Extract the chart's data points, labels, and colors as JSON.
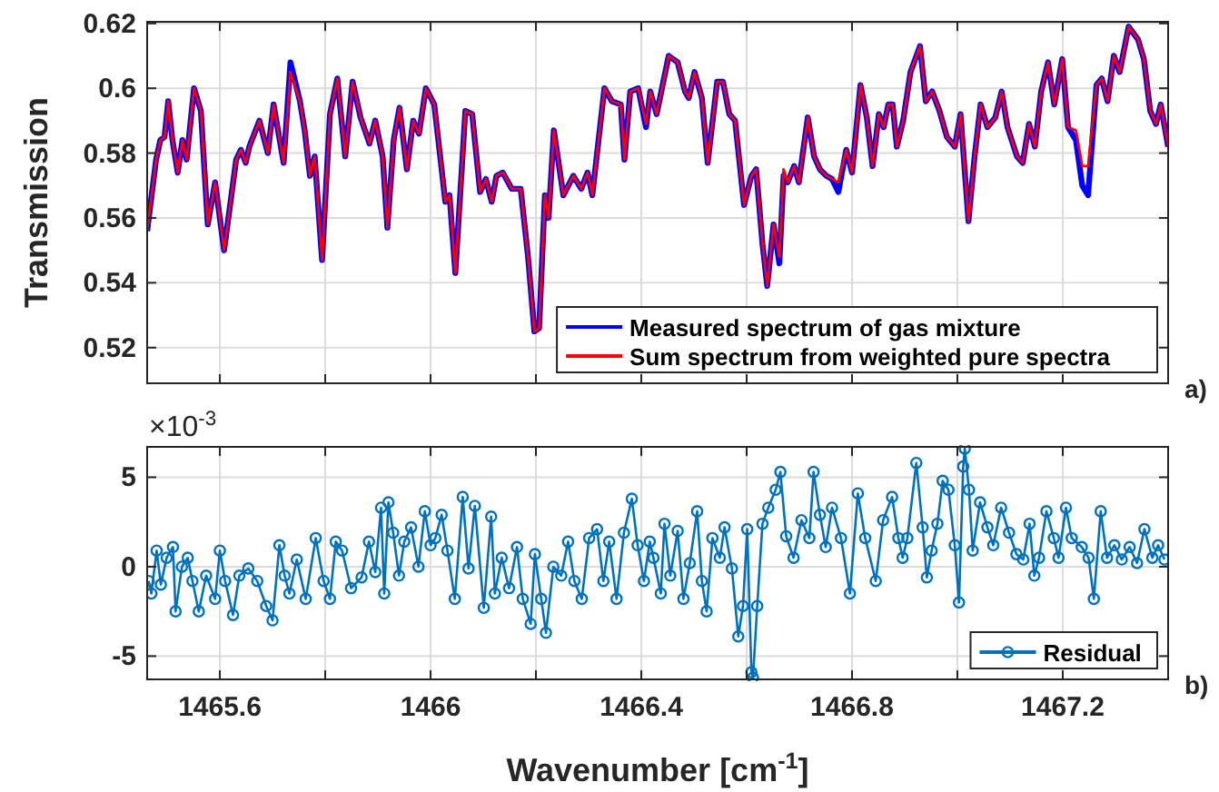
{
  "chart_data": [
    {
      "type": "line",
      "ylabel": "Transmission",
      "tick_labels": "y",
      "grid": true,
      "legend": "bottom right",
      "annotations": [
        "a)"
      ],
      "xlim": [
        1465.462,
        1467.4
      ],
      "xticks": [
        1465.6,
        {
          "value": 1465.8,
          "label": null
        },
        1466,
        {
          "value": 1466.2,
          "label": null
        },
        1466.4,
        {
          "value": 1466.6,
          "label": null
        },
        1466.8,
        {
          "value": 1467,
          "label": null
        },
        1467.2
      ],
      "ylim": [
        0.509,
        0.6205
      ],
      "yticks": [
        0.52,
        0.54,
        0.56,
        0.58,
        0.6,
        0.62
      ],
      "x": [
        1465.462,
        1465.479,
        1465.487,
        1465.495,
        1465.502,
        1465.51,
        1465.52,
        1465.529,
        1465.537,
        1465.551,
        1465.564,
        1465.577,
        1465.591,
        1465.608,
        1465.631,
        1465.64,
        1465.649,
        1465.656,
        1465.675,
        1465.691,
        1465.702,
        1465.721,
        1465.734,
        1465.752,
        1465.761,
        1465.771,
        1465.78,
        1465.794,
        1465.809,
        1465.823,
        1465.838,
        1465.852,
        1465.867,
        1465.884,
        1465.895,
        1465.909,
        1465.918,
        1465.93,
        1465.941,
        1465.955,
        1465.967,
        1465.978,
        1465.991,
        1466.007,
        1466.028,
        1466.036,
        1466.047,
        1466.066,
        1466.079,
        1466.094,
        1466.105,
        1466.116,
        1466.125,
        1466.137,
        1466.154,
        1466.171,
        1466.185,
        1466.197,
        1466.206,
        1466.217,
        1466.224,
        1466.234,
        1466.252,
        1466.271,
        1466.286,
        1466.298,
        1466.307,
        1466.33,
        1466.344,
        1466.361,
        1466.368,
        1466.379,
        1466.394,
        1466.409,
        1466.417,
        1466.429,
        1466.452,
        1466.469,
        1466.483,
        1466.49,
        1466.501,
        1466.515,
        1466.526,
        1466.544,
        1466.555,
        1466.567,
        1466.578,
        1466.595,
        1466.609,
        1466.618,
        1466.63,
        1466.639,
        1466.651,
        1466.662,
        1466.67,
        1466.678,
        1466.69,
        1466.699,
        1466.716,
        1466.728,
        1466.739,
        1466.751,
        1466.762,
        1466.774,
        1466.789,
        1466.8,
        1466.816,
        1466.828,
        1466.839,
        1466.851,
        1466.86,
        1466.869,
        1466.877,
        1466.885,
        1466.897,
        1466.911,
        1466.929,
        1466.94,
        1466.952,
        1466.966,
        1466.98,
        1466.995,
        1467.006,
        1467.021,
        1467.032,
        1467.044,
        1467.057,
        1467.072,
        1467.084,
        1467.095,
        1467.113,
        1467.124,
        1467.136,
        1467.147,
        1467.159,
        1467.172,
        1467.184,
        1467.199,
        1467.21,
        1467.225,
        1467.237,
        1467.248,
        1467.264,
        1467.274,
        1467.285,
        1467.297,
        1467.308,
        1467.325,
        1467.343,
        1467.354,
        1467.366,
        1467.377,
        1467.386,
        1467.4
      ],
      "series": [
        {
          "name": "Measured spectrum of gas mixture",
          "color": "#0000ff",
          "values": [
            0.556,
            0.578,
            0.584,
            0.585,
            0.596,
            0.584,
            0.574,
            0.584,
            0.578,
            0.6,
            0.593,
            0.558,
            0.571,
            0.55,
            0.578,
            0.581,
            0.577,
            0.582,
            0.59,
            0.58,
            0.595,
            0.577,
            0.608,
            0.596,
            0.587,
            0.573,
            0.579,
            0.547,
            0.592,
            0.603,
            0.579,
            0.602,
            0.591,
            0.583,
            0.59,
            0.579,
            0.557,
            0.584,
            0.594,
            0.575,
            0.59,
            0.586,
            0.6,
            0.595,
            0.565,
            0.567,
            0.543,
            0.593,
            0.592,
            0.568,
            0.572,
            0.565,
            0.573,
            0.574,
            0.569,
            0.569,
            0.548,
            0.525,
            0.526,
            0.567,
            0.56,
            0.587,
            0.567,
            0.573,
            0.569,
            0.574,
            0.567,
            0.6,
            0.596,
            0.595,
            0.578,
            0.599,
            0.6,
            0.588,
            0.599,
            0.592,
            0.61,
            0.608,
            0.599,
            0.597,
            0.605,
            0.597,
            0.577,
            0.602,
            0.602,
            0.592,
            0.59,
            0.564,
            0.573,
            0.575,
            0.552,
            0.539,
            0.558,
            0.546,
            0.573,
            0.571,
            0.576,
            0.571,
            0.591,
            0.579,
            0.575,
            0.573,
            0.572,
            0.568,
            0.581,
            0.574,
            0.601,
            0.591,
            0.576,
            0.592,
            0.588,
            0.595,
            0.595,
            0.582,
            0.59,
            0.605,
            0.613,
            0.596,
            0.599,
            0.593,
            0.585,
            0.582,
            0.592,
            0.559,
            0.578,
            0.595,
            0.588,
            0.591,
            0.599,
            0.588,
            0.579,
            0.577,
            0.589,
            0.582,
            0.599,
            0.608,
            0.595,
            0.609,
            0.588,
            0.584,
            0.57,
            0.567,
            0.601,
            0.603,
            0.596,
            0.61,
            0.605,
            0.619,
            0.615,
            0.609,
            0.593,
            0.589,
            0.595,
            0.582
          ]
        },
        {
          "name": "Sum spectrum from weighted pure spectra",
          "color": "#ff0000",
          "values": [
            0.556,
            0.578,
            0.584,
            0.585,
            0.596,
            0.584,
            0.574,
            0.584,
            0.578,
            0.6,
            0.593,
            0.558,
            0.571,
            0.55,
            0.578,
            0.581,
            0.577,
            0.582,
            0.59,
            0.58,
            0.595,
            0.577,
            0.605,
            0.596,
            0.587,
            0.573,
            0.579,
            0.547,
            0.592,
            0.603,
            0.579,
            0.602,
            0.591,
            0.583,
            0.59,
            0.579,
            0.557,
            0.584,
            0.594,
            0.575,
            0.59,
            0.586,
            0.6,
            0.595,
            0.565,
            0.567,
            0.543,
            0.593,
            0.592,
            0.568,
            0.572,
            0.565,
            0.573,
            0.574,
            0.569,
            0.569,
            0.548,
            0.525,
            0.526,
            0.567,
            0.56,
            0.587,
            0.567,
            0.573,
            0.569,
            0.574,
            0.567,
            0.6,
            0.596,
            0.595,
            0.578,
            0.599,
            0.6,
            0.589,
            0.599,
            0.592,
            0.61,
            0.608,
            0.599,
            0.597,
            0.605,
            0.597,
            0.577,
            0.602,
            0.602,
            0.592,
            0.59,
            0.564,
            0.573,
            0.575,
            0.552,
            0.539,
            0.558,
            0.548,
            0.575,
            0.571,
            0.576,
            0.571,
            0.591,
            0.579,
            0.575,
            0.573,
            0.572,
            0.571,
            0.581,
            0.574,
            0.601,
            0.591,
            0.576,
            0.592,
            0.588,
            0.595,
            0.595,
            0.582,
            0.59,
            0.605,
            0.613,
            0.596,
            0.599,
            0.593,
            0.585,
            0.582,
            0.592,
            0.559,
            0.578,
            0.595,
            0.588,
            0.591,
            0.599,
            0.588,
            0.579,
            0.577,
            0.589,
            0.582,
            0.599,
            0.608,
            0.595,
            0.609,
            0.588,
            0.587,
            0.576,
            0.576,
            0.601,
            0.603,
            0.596,
            0.61,
            0.605,
            0.619,
            0.615,
            0.609,
            0.593,
            0.589,
            0.595,
            0.582
          ]
        }
      ]
    },
    {
      "type": "line",
      "xlabel": "Wavenumber [cm$^{-1}$]",
      "grid": true,
      "legend": "bottom right",
      "marker": "circle",
      "annotations": [
        "×10$^{-3}$",
        "b)"
      ],
      "xlim": [
        1465.462,
        1467.4
      ],
      "xticks": [
        1465.6,
        {
          "value": 1465.8,
          "label": null
        },
        1466,
        {
          "value": 1466.2,
          "label": null
        },
        1466.4,
        {
          "value": 1466.6,
          "label": null
        },
        1466.8,
        {
          "value": 1467,
          "label": null
        },
        1467.2
      ],
      "ylim": [
        -6.3,
        6.7
      ],
      "yticks": [
        -5,
        0,
        5
      ],
      "x": [
        1465.465,
        1465.47,
        1465.48,
        1465.488,
        1465.499,
        1465.511,
        1465.516,
        1465.528,
        1465.539,
        1465.548,
        1465.56,
        1465.574,
        1465.591,
        1465.6,
        1465.61,
        1465.625,
        1465.637,
        1465.654,
        1465.671,
        1465.688,
        1465.7,
        1465.713,
        1465.723,
        1465.732,
        1465.746,
        1465.763,
        1465.782,
        1465.797,
        1465.809,
        1465.82,
        1465.832,
        1465.849,
        1465.869,
        1465.883,
        1465.895,
        1465.906,
        1465.912,
        1465.92,
        1465.929,
        1465.94,
        1465.95,
        1465.963,
        1465.977,
        1465.989,
        1466.0,
        1466.009,
        1466.021,
        1466.032,
        1466.046,
        1466.061,
        1466.072,
        1466.084,
        1466.101,
        1466.115,
        1466.122,
        1466.135,
        1466.149,
        1466.164,
        1466.175,
        1466.19,
        1466.198,
        1466.21,
        1466.219,
        1466.233,
        1466.248,
        1466.261,
        1466.273,
        1466.287,
        1466.301,
        1466.316,
        1466.328,
        1466.339,
        1466.353,
        1466.367,
        1466.382,
        1466.393,
        1466.405,
        1466.416,
        1466.423,
        1466.437,
        1466.444,
        1466.455,
        1466.469,
        1466.48,
        1466.492,
        1466.506,
        1466.515,
        1466.524,
        1466.535,
        1466.549,
        1466.558,
        1466.572,
        1466.584,
        1466.593,
        1466.601,
        1466.609,
        1466.612,
        1466.62,
        1466.63,
        1466.641,
        1466.655,
        1466.664,
        1466.675,
        1466.689,
        1466.704,
        1466.719,
        1466.727,
        1466.739,
        1466.75,
        1466.762,
        1466.779,
        1466.796,
        1466.811,
        1466.825,
        1466.845,
        1466.859,
        1466.876,
        1466.888,
        1466.896,
        1466.905,
        1466.922,
        1466.934,
        1466.942,
        1466.951,
        1466.962,
        1466.972,
        1466.983,
        1466.995,
        1467.003,
        1467.011,
        1467.014,
        1467.022,
        1467.029,
        1467.043,
        1467.057,
        1467.068,
        1467.083,
        1467.098,
        1467.112,
        1467.125,
        1467.137,
        1467.146,
        1467.155,
        1467.169,
        1467.183,
        1467.192,
        1467.206,
        1467.217,
        1467.236,
        1467.249,
        1467.259,
        1467.272,
        1467.284,
        1467.298,
        1467.312,
        1467.327,
        1467.341,
        1467.355,
        1467.37,
        1467.381,
        1467.393
      ],
      "series": [
        {
          "name": "Residual",
          "color": "#0072bd",
          "values": [
            -0.8,
            -1.5,
            0.9,
            -1.0,
            0.5,
            1.1,
            -2.5,
            0.0,
            0.5,
            -0.8,
            -2.5,
            -0.5,
            -1.8,
            0.9,
            -0.8,
            -2.7,
            -0.5,
            -0.1,
            -0.8,
            -2.2,
            -3.0,
            1.2,
            -0.5,
            -1.5,
            0.4,
            -1.8,
            1.6,
            -0.8,
            -1.8,
            1.4,
            0.9,
            -1.2,
            -0.6,
            1.4,
            -0.3,
            3.3,
            -1.5,
            3.6,
            1.9,
            -0.5,
            1.4,
            2.2,
            0.0,
            3.1,
            1.2,
            1.6,
            2.9,
            0.9,
            -1.8,
            3.9,
            -0.1,
            3.4,
            -2.3,
            2.8,
            -1.5,
            0.5,
            -1.2,
            1.1,
            -1.8,
            -3.2,
            0.7,
            -1.8,
            -3.7,
            0.0,
            -0.5,
            1.4,
            -0.8,
            -1.8,
            1.6,
            2.1,
            -0.8,
            1.4,
            -1.8,
            1.9,
            3.8,
            1.2,
            -0.8,
            1.4,
            0.5,
            -1.5,
            2.4,
            -0.5,
            2.0,
            -1.8,
            0.2,
            3.1,
            -0.8,
            -2.5,
            1.6,
            0.5,
            2.2,
            -0.1,
            -3.9,
            -2.2,
            2.1,
            -5.9,
            -6.2,
            -2.2,
            2.4,
            3.3,
            4.3,
            5.3,
            1.7,
            0.5,
            2.6,
            1.6,
            5.3,
            2.9,
            1.1,
            3.3,
            1.6,
            -1.5,
            4.1,
            1.6,
            -0.8,
            2.6,
            3.9,
            1.6,
            0.5,
            1.6,
            5.8,
            2.2,
            -0.6,
            0.9,
            2.4,
            4.8,
            4.3,
            1.2,
            -2.0,
            5.6,
            6.6,
            4.3,
            0.9,
            3.6,
            2.2,
            1.2,
            3.3,
            1.9,
            0.7,
            0.4,
            2.4,
            -0.5,
            0.5,
            3.1,
            1.6,
            0.5,
            3.3,
            1.6,
            1.1,
            0.5,
            -1.8,
            3.1,
            0.5,
            1.2,
            0.4,
            1.1,
            0.2,
            2.1,
            0.5,
            1.2,
            0.4
          ]
        }
      ]
    }
  ]
}
